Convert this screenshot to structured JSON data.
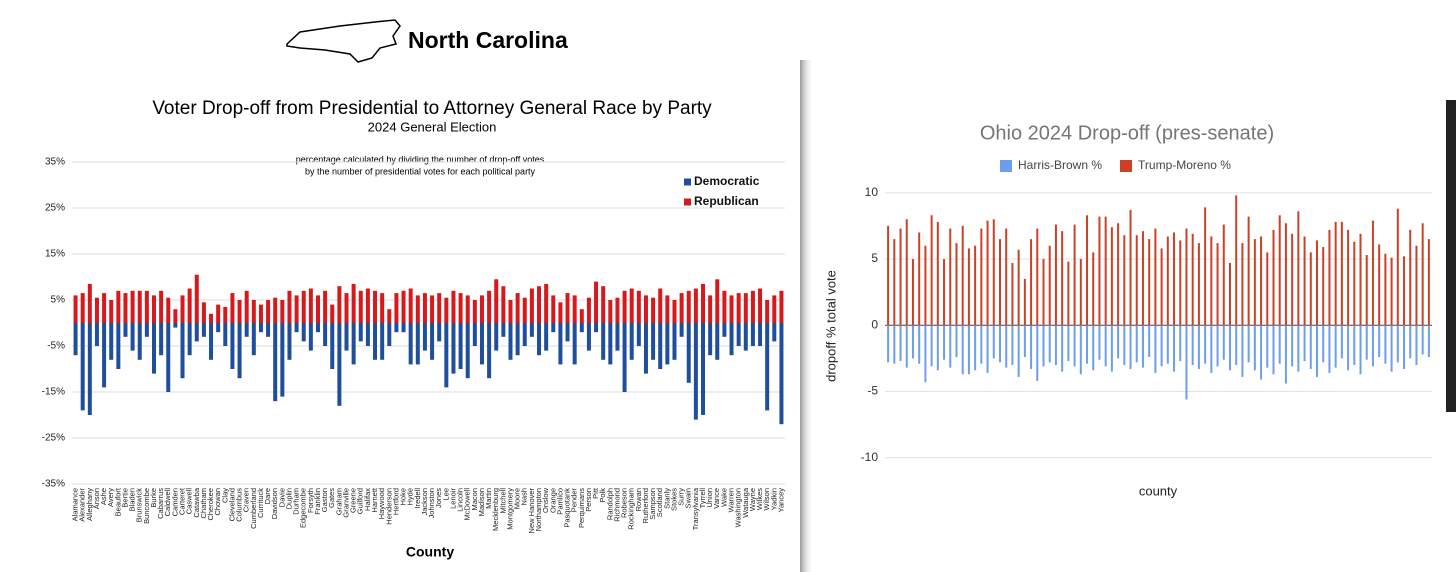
{
  "header": {
    "title": "North Carolina"
  },
  "chart_data": [
    {
      "type": "bar",
      "title": "Voter Drop-off from Presidential to Attorney General Race by Party",
      "subtitle": "2024 General Election",
      "annotation": [
        "percentage calculated by dividing the number of drop-off votes",
        "by the number of presidential votes for each political party"
      ],
      "xlabel": "County",
      "categories": [
        "Alamance",
        "Alexander",
        "Alleghany",
        "Anson",
        "Ashe",
        "Avery",
        "Beaufort",
        "Bertie",
        "Bladen",
        "Brunswick",
        "Buncombe",
        "Burke",
        "Cabarrus",
        "Caldwell",
        "Camden",
        "Carteret",
        "Caswell",
        "Catawba",
        "Chatham",
        "Cherokee",
        "Chowan",
        "Clay",
        "Cleveland",
        "Columbus",
        "Craven",
        "Cumberland",
        "Currituck",
        "Dare",
        "Davidson",
        "Davie",
        "Duplin",
        "Durham",
        "Edgecombe",
        "Forsyth",
        "Franklin",
        "Gaston",
        "Gates",
        "Graham",
        "Granville",
        "Greene",
        "Guilford",
        "Halifax",
        "Harnett",
        "Haywood",
        "Henderson",
        "Hertford",
        "Hoke",
        "Hyde",
        "Iredell",
        "Jackson",
        "Johnston",
        "Jones",
        "Lee",
        "Lenoir",
        "Lincoln",
        "McDowell",
        "Macon",
        "Madison",
        "Martin",
        "Mecklenburg",
        "Mitchell",
        "Montgomery",
        "Moore",
        "Nash",
        "New Hanover",
        "Northampton",
        "Onslow",
        "Orange",
        "Pamlico",
        "Pasquotank",
        "Pender",
        "Perquimans",
        "Person",
        "Pitt",
        "Polk",
        "Randolph",
        "Richmond",
        "Robeson",
        "Rockingham",
        "Rowan",
        "Rutherford",
        "Sampson",
        "Scotland",
        "Stanly",
        "Stokes",
        "Surry",
        "Swain",
        "Transylvania",
        "Tyrrell",
        "Union",
        "Vance",
        "Wake",
        "Warren",
        "Washington",
        "Watauga",
        "Wayne",
        "Wilkes",
        "Wilson",
        "Yadkin",
        "Yancey"
      ],
      "series": [
        {
          "name": "Democratic",
          "color": "#1f4e9c",
          "values": [
            -7,
            -19,
            -20,
            -5,
            -14,
            -8,
            -10,
            -3,
            -6,
            -8,
            -3,
            -11,
            -7,
            -15,
            -1,
            -12,
            -7,
            -4,
            -3,
            -8,
            -2,
            -5,
            -10,
            -12,
            -3,
            -7,
            -2,
            -3,
            -17,
            -16,
            -8,
            -2,
            -4,
            -6,
            -2,
            -5,
            -10,
            -18,
            -6,
            -9,
            -4,
            -5,
            -8,
            -8,
            -5,
            -2,
            -2,
            -9,
            -9,
            -6,
            -8,
            -4,
            -14,
            -11,
            -10,
            -12,
            -5,
            -9,
            -12,
            -6,
            -3,
            -8,
            -7,
            -5,
            -3,
            -7,
            -6,
            -2,
            -9,
            -4,
            -9,
            -2,
            -6,
            -2,
            -8,
            -9,
            -6,
            -15,
            -8,
            -5,
            -11,
            -8,
            -10,
            -9,
            -8,
            -3,
            -13,
            -21,
            -20,
            -7,
            -8,
            -3,
            -7,
            -5,
            -6,
            -5,
            -5,
            -19,
            -4,
            -22
          ]
        },
        {
          "name": "Republican",
          "color": "#d7191c",
          "values": [
            6,
            6.5,
            8.5,
            5.5,
            6.5,
            5,
            7,
            6.5,
            7,
            7,
            7,
            6,
            7,
            5.5,
            3,
            6,
            7.5,
            10.5,
            4.5,
            2,
            4,
            3.5,
            6.5,
            5,
            7,
            5,
            4,
            5,
            5.5,
            5,
            7,
            6,
            7,
            7.5,
            6,
            7,
            4,
            8,
            6.5,
            8.5,
            7,
            7.5,
            7,
            6.5,
            3,
            6.5,
            7,
            7.5,
            6,
            6.5,
            6,
            6.5,
            5.5,
            7,
            6.5,
            6,
            5,
            6,
            7,
            9.5,
            8,
            5,
            6.5,
            5.5,
            7.5,
            8,
            8.5,
            6,
            4.5,
            6.5,
            6,
            3,
            5.5,
            9,
            8,
            5,
            5.5,
            7,
            7.5,
            7,
            6,
            5.5,
            7.5,
            6,
            5,
            6.5,
            7,
            7.5,
            8.5,
            6,
            9.5,
            7,
            6,
            6.5,
            6.5,
            7,
            7.5,
            5,
            6,
            7
          ]
        }
      ],
      "ylim": [
        -35,
        35
      ],
      "yticks": [
        {
          "value": -35,
          "label": "-35%"
        },
        {
          "value": -25,
          "label": "-25%"
        },
        {
          "value": -15,
          "label": "-15%"
        },
        {
          "value": -5,
          "label": "-5%"
        },
        {
          "value": 5,
          "label": "5%"
        },
        {
          "value": 15,
          "label": "15%"
        },
        {
          "value": 25,
          "label": "25%"
        },
        {
          "value": 35,
          "label": "35%"
        }
      ],
      "grid": true,
      "legend": "upper right"
    },
    {
      "type": "bar",
      "title": "Ohio 2024 Drop-off (pres-senate)",
      "xlabel": "county",
      "ylabel": "dropoff % total vote",
      "categories": [
        null,
        null,
        null,
        null,
        null,
        null,
        null,
        null,
        null,
        null,
        null,
        null,
        null,
        null,
        null,
        null,
        null,
        null,
        null,
        null,
        null,
        null,
        null,
        null,
        null,
        null,
        null,
        null,
        null,
        null,
        null,
        null,
        null,
        null,
        null,
        null,
        null,
        null,
        null,
        null,
        null,
        null,
        null,
        null,
        null,
        null,
        null,
        null,
        null,
        null,
        null,
        null,
        null,
        null,
        null,
        null,
        null,
        null,
        null,
        null,
        null,
        null,
        null,
        null,
        null,
        null,
        null,
        null,
        null,
        null,
        null,
        null,
        null,
        null,
        null,
        null,
        null,
        null,
        null,
        null,
        null,
        null,
        null,
        null,
        null,
        null,
        null,
        null
      ],
      "series": [
        {
          "name": "Harris-Brown %",
          "color": "#6d9eeb",
          "values": [
            -2.8,
            -2.9,
            -2.7,
            -3.2,
            -2.5,
            -2.9,
            -4.3,
            -3.1,
            -3.4,
            -2.6,
            -3.2,
            -2.4,
            -3.7,
            -3.7,
            -3.4,
            -2.9,
            -3.6,
            -2.5,
            -2.8,
            -3.2,
            -3,
            -3.9,
            -2.4,
            -3.3,
            -4.2,
            -3.1,
            -2.8,
            -3,
            -3.5,
            -2.7,
            -3.1,
            -3.7,
            -2.9,
            -3.4,
            -2.6,
            -3.1,
            -3.5,
            -2.5,
            -3,
            -3.3,
            -2.8,
            -3.2,
            -2.4,
            -3.6,
            -3.1,
            -2.9,
            -3.5,
            -2.7,
            -5.6,
            -3,
            -3.3,
            -2.9,
            -3.6,
            -3.1,
            -2.6,
            -3.4,
            -3,
            -3.9,
            -2.8,
            -3.4,
            -4.1,
            -3.2,
            -3.7,
            -2.9,
            -4.4,
            -3.1,
            -3.5,
            -2.7,
            -3.3,
            -3.9,
            -2.8,
            -3.6,
            -3.2,
            -2.5,
            -3.4,
            -3,
            -3.7,
            -2.6,
            -3.1,
            -2.4,
            -2.9,
            -3.5,
            -2.8,
            -3.3,
            -2.5,
            -3,
            -2.2,
            -2.4
          ]
        },
        {
          "name": "Trump-Moreno %",
          "color": "#cc4125",
          "values": [
            7.5,
            6.5,
            7.3,
            8,
            5,
            7,
            6,
            8.3,
            7.8,
            5,
            7.3,
            6.2,
            7.5,
            5.8,
            6,
            7.3,
            7.9,
            8,
            6.5,
            7.3,
            4.7,
            5.7,
            3.5,
            6.5,
            7.3,
            5,
            6,
            7.6,
            7.1,
            4.8,
            7.6,
            5,
            8.3,
            5.5,
            8.2,
            8.2,
            7.4,
            7.7,
            6.8,
            8.7,
            6.8,
            7.1,
            6.5,
            7.3,
            5.8,
            6.7,
            7,
            6.4,
            7.3,
            6.9,
            6.2,
            8.9,
            6.7,
            6.2,
            7.6,
            4.7,
            9.8,
            6.2,
            8.2,
            6.5,
            6.7,
            5.5,
            7.2,
            8.3,
            7.7,
            6.9,
            8.6,
            6.7,
            5.5,
            6.4,
            5.9,
            7.2,
            7.8,
            7.8,
            7.2,
            6.3,
            6.9,
            5.3,
            7.9,
            6.1,
            5.4,
            5.1,
            8.8,
            5.2,
            7.2,
            6,
            7.7,
            6.5
          ]
        }
      ],
      "ylim": [
        -11,
        13
      ],
      "yticks": [
        -10,
        -5,
        0,
        5,
        10
      ],
      "grid": true,
      "legend": "top"
    }
  ]
}
